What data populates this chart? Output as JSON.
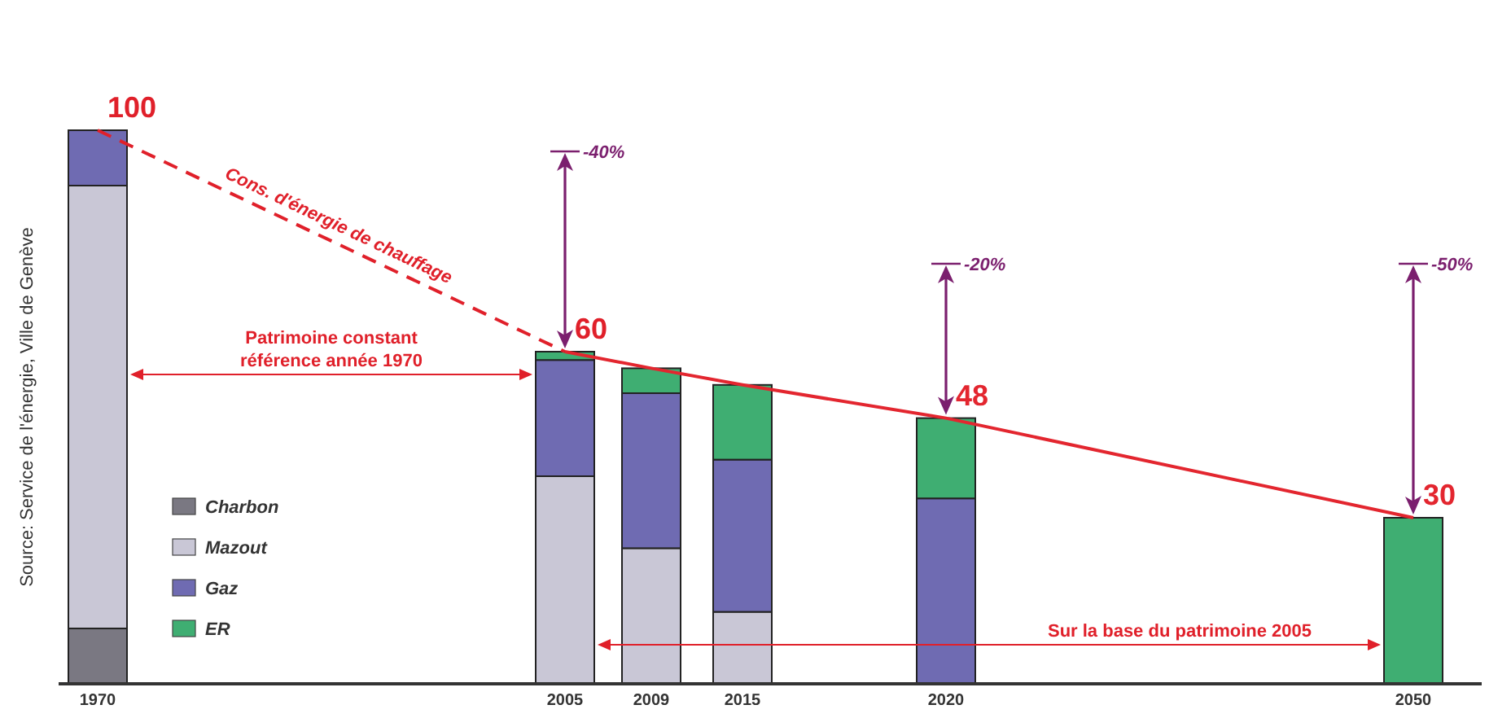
{
  "chart_data": {
    "type": "bar",
    "stacked": true,
    "legend": "bottom left",
    "ylim": [
      0,
      100
    ],
    "tick_labels": "x",
    "categories": [
      "1970",
      "2005",
      "2009",
      "2015",
      "2020",
      "2050"
    ],
    "series": [
      {
        "name": "Charbon",
        "color": "#7a7882",
        "values": [
          10,
          null,
          null,
          null,
          null,
          null
        ]
      },
      {
        "name": "Mazout",
        "color": "#c9c7d6",
        "values": [
          80,
          37.5,
          24.5,
          13,
          null,
          null
        ]
      },
      {
        "name": "Gaz",
        "color": "#6f6bb2",
        "values": [
          10,
          21,
          28,
          27.5,
          33.5,
          null
        ]
      },
      {
        "name": "ER",
        "color": "#3fae72",
        "values": [
          null,
          1.5,
          4.5,
          13.5,
          14.5,
          30
        ]
      },
      {
        "type": "line",
        "name": "Cons. d'énergie de chauffage",
        "color": "#e0202a",
        "line_style": "dashed",
        "values": [
          100,
          60,
          null,
          null,
          null,
          null
        ],
        "value_labels": [
          "100",
          "60",
          null,
          null,
          null,
          null
        ]
      },
      {
        "type": "line",
        "color": "#e3262f",
        "line_style": "solid",
        "values": [
          null,
          60,
          57,
          54,
          48,
          30
        ],
        "value_labels": [
          null,
          null,
          null,
          null,
          "48",
          "30"
        ]
      }
    ],
    "annotations": [
      "Patrimoine constant\nréférence année 1970",
      "Sur la base du patrimoine 2005",
      "Source: Service de l'énergie, Ville de Genève",
      "-40%",
      "-20%",
      "-50%"
    ]
  }
}
